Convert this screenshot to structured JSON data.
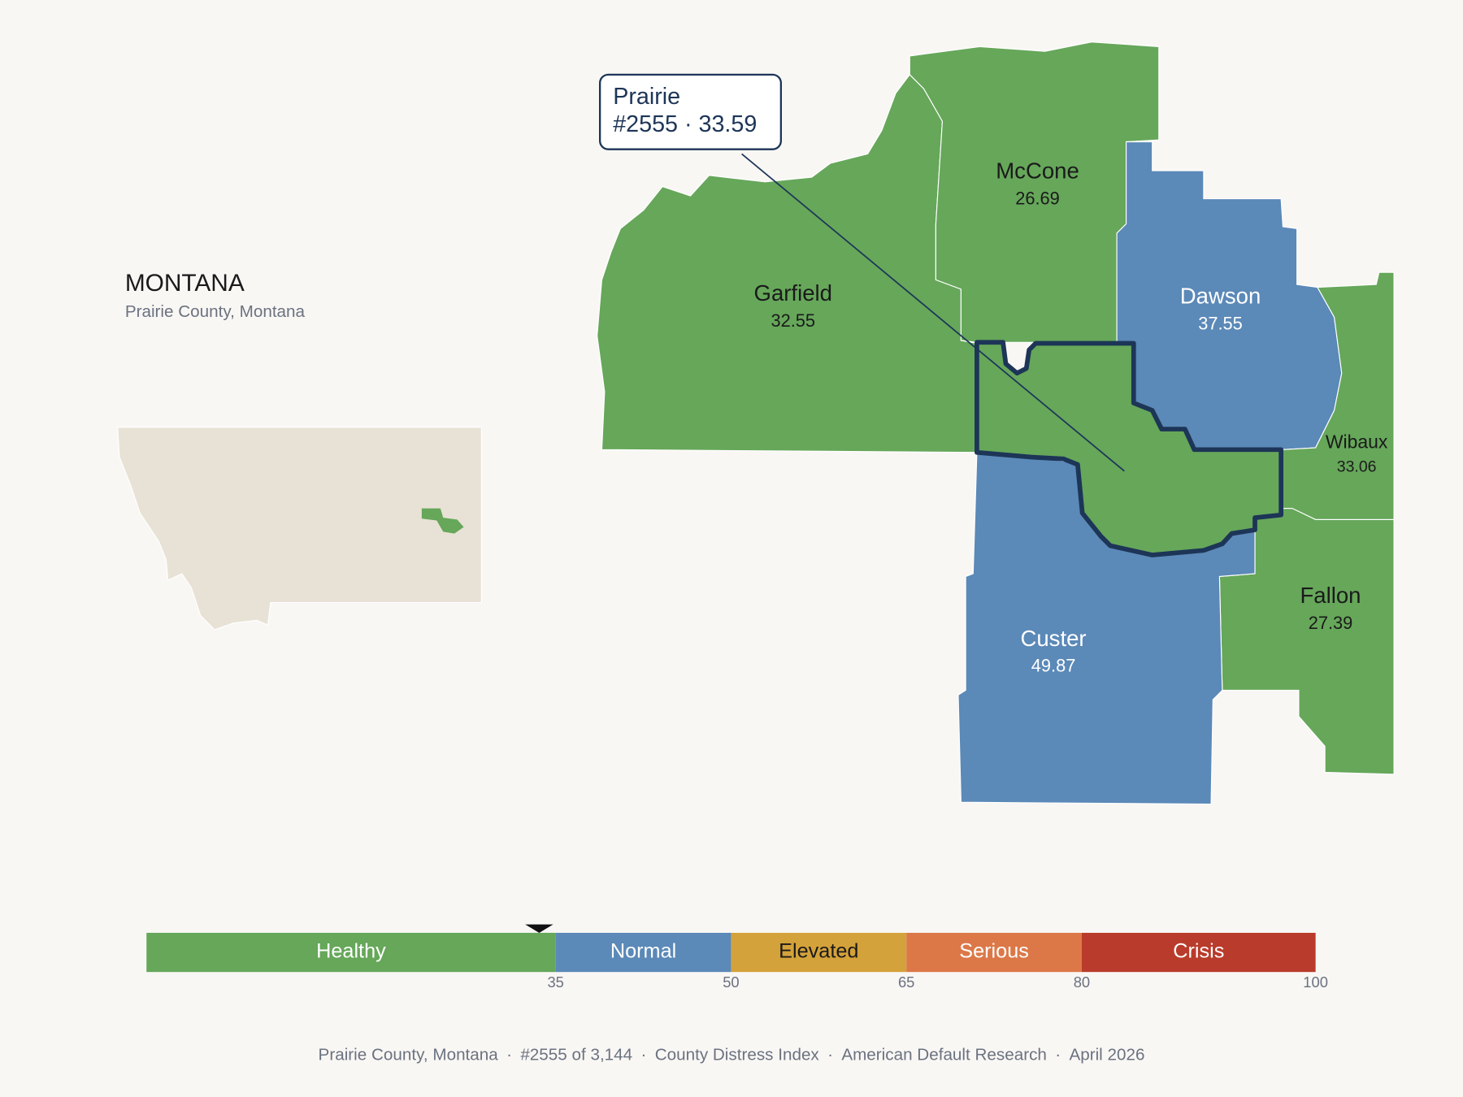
{
  "state": {
    "title": "MONTANA",
    "subtitle": "Prairie County, Montana"
  },
  "callout": {
    "name": "Prairie",
    "rank": "#2555",
    "value": 33.59
  },
  "separator": "·",
  "counties": [
    {
      "name": "Garfield",
      "value": 32.55
    },
    {
      "name": "McCone",
      "value": 26.69
    },
    {
      "name": "Dawson",
      "value": 37.55
    },
    {
      "name": "Wibaux",
      "value": 33.06
    },
    {
      "name": "Fallon",
      "value": 27.39
    },
    {
      "name": "Custer",
      "value": 49.87
    }
  ],
  "scale": {
    "xlim": [
      0,
      100
    ],
    "ticks": [
      35,
      50,
      65,
      80,
      100
    ],
    "bands": [
      {
        "label": "Healthy",
        "color": "#66a75a"
      },
      {
        "label": "Normal",
        "color": "#5b89b8"
      },
      {
        "label": "Elevated",
        "color": "#d4a23a"
      },
      {
        "label": "Serious",
        "color": "#dc7848"
      },
      {
        "label": "Crisis",
        "color": "#b93b2b"
      }
    ]
  },
  "footer": [
    "Prairie County, Montana",
    "#2555 of 3,144",
    "County Distress Index",
    "American Default Research",
    "April 2026"
  ]
}
